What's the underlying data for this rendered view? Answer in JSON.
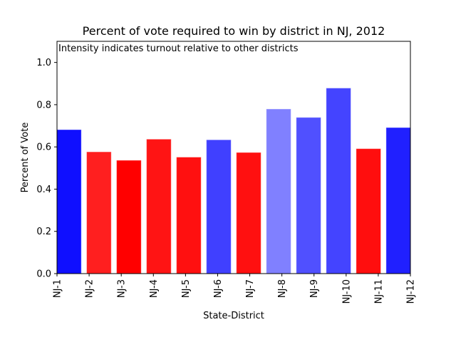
{
  "chart_data": {
    "type": "bar",
    "title": "Percent of vote required to win by district in NJ, 2012",
    "annotation": "Intensity indicates turnout relative to other districts",
    "xlabel": "State-District",
    "ylabel": "Percent of Vote",
    "ylim": [
      0,
      1.1
    ],
    "yticks": [
      0.0,
      0.2,
      0.4,
      0.6,
      0.8,
      1.0
    ],
    "ytick_labels": [
      "0.0",
      "0.2",
      "0.4",
      "0.6",
      "0.8",
      "1.0"
    ],
    "grid": false,
    "categories": [
      "NJ-1",
      "NJ-2",
      "NJ-3",
      "NJ-4",
      "NJ-5",
      "NJ-6",
      "NJ-7",
      "NJ-8",
      "NJ-9",
      "NJ-10",
      "NJ-11",
      "NJ-12"
    ],
    "values": [
      0.68,
      0.575,
      0.535,
      0.635,
      0.55,
      0.632,
      0.572,
      0.778,
      0.738,
      0.877,
      0.59,
      0.69
    ],
    "colors": [
      "#0f0fff",
      "#ff1f1f",
      "#ff0000",
      "#ff1414",
      "#ff1010",
      "#4040ff",
      "#ff1010",
      "#8080ff",
      "#5050ff",
      "#4444ff",
      "#ff0e0e",
      "#2020ff"
    ]
  }
}
